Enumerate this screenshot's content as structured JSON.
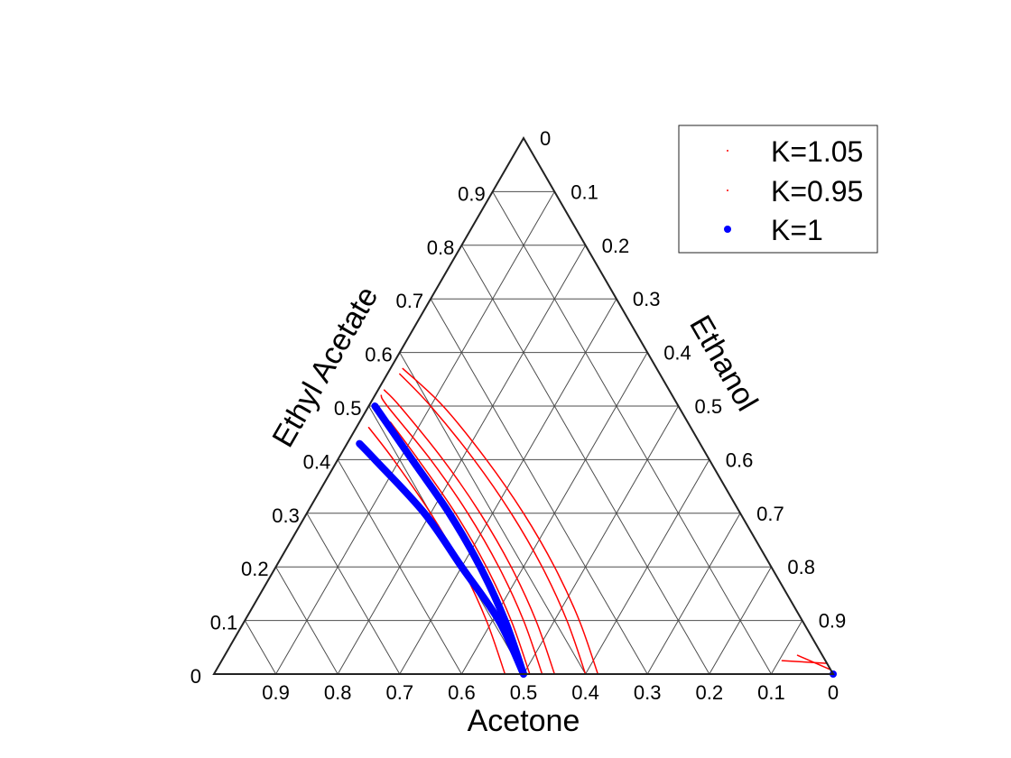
{
  "chart_data": {
    "type": "scatter",
    "projection": "ternary",
    "axes": {
      "bottom": {
        "label": "Acetone",
        "ticks": [
          "0.9",
          "0.8",
          "0.7",
          "0.6",
          "0.5",
          "0.4",
          "0.3",
          "0.2",
          "0.1",
          "0"
        ]
      },
      "left": {
        "label": "Ethyl Acetate",
        "ticks": [
          "0",
          "0.1",
          "0.2",
          "0.3",
          "0.4",
          "0.5",
          "0.6",
          "0.7",
          "0.8",
          "0.9"
        ]
      },
      "right": {
        "label": "Ethanol",
        "ticks": [
          "0",
          "0.1",
          "0.2",
          "0.3",
          "0.4",
          "0.5",
          "0.6",
          "0.7",
          "0.8",
          "0.9"
        ]
      }
    },
    "grid": true,
    "legend": {
      "position": "top-right",
      "entries": [
        "K=1.05",
        "K=0.95",
        "K=1"
      ]
    },
    "series": [
      {
        "name": "K=1.05",
        "color": "#ff0000",
        "marker": "dot",
        "curves": [
          [
            [
              0.0,
              0.38,
              0.62
            ],
            [
              0.1,
              0.36,
              0.54
            ],
            [
              0.2,
              0.35,
              0.45
            ],
            [
              0.3,
              0.35,
              0.35
            ],
            [
              0.4,
              0.36,
              0.24
            ],
            [
              0.5,
              0.38,
              0.12
            ],
            [
              0.57,
              0.41,
              0.02
            ]
          ],
          [
            [
              0.0,
              0.45,
              0.55
            ],
            [
              0.1,
              0.43,
              0.47
            ],
            [
              0.2,
              0.42,
              0.38
            ],
            [
              0.3,
              0.42,
              0.28
            ],
            [
              0.4,
              0.43,
              0.17
            ],
            [
              0.5,
              0.45,
              0.05
            ],
            [
              0.53,
              0.46,
              0.01
            ]
          ],
          [
            [
              0.0,
              0.49,
              0.51
            ],
            [
              0.1,
              0.47,
              0.43
            ],
            [
              0.2,
              0.46,
              0.34
            ],
            [
              0.3,
              0.46,
              0.24
            ],
            [
              0.4,
              0.47,
              0.13
            ],
            [
              0.47,
              0.48,
              0.05
            ]
          ],
          [
            [
              0.008,
              0.0,
              0.992
            ],
            [
              0.035,
              0.04,
              0.925
            ]
          ]
        ]
      },
      {
        "name": "K=0.95",
        "color": "#ff0000",
        "marker": "dot",
        "curves": [
          [
            [
              0.0,
              0.4,
              0.6
            ],
            [
              0.1,
              0.38,
              0.52
            ],
            [
              0.2,
              0.37,
              0.43
            ],
            [
              0.3,
              0.37,
              0.33
            ],
            [
              0.4,
              0.38,
              0.22
            ],
            [
              0.5,
              0.4,
              0.1
            ],
            [
              0.56,
              0.42,
              0.02
            ]
          ],
          [
            [
              0.0,
              0.47,
              0.53
            ],
            [
              0.1,
              0.45,
              0.45
            ],
            [
              0.2,
              0.44,
              0.36
            ],
            [
              0.3,
              0.44,
              0.26
            ],
            [
              0.4,
              0.45,
              0.15
            ],
            [
              0.5,
              0.47,
              0.03
            ],
            [
              0.52,
              0.47,
              0.01
            ]
          ],
          [
            [
              0.0,
              0.53,
              0.47
            ],
            [
              0.1,
              0.51,
              0.39
            ],
            [
              0.2,
              0.5,
              0.3
            ],
            [
              0.3,
              0.5,
              0.2
            ],
            [
              0.4,
              0.51,
              0.09
            ],
            [
              0.46,
              0.52,
              0.02
            ]
          ],
          [
            [
              0.02,
              0.0,
              0.98
            ],
            [
              0.025,
              0.07,
              0.905
            ]
          ]
        ]
      },
      {
        "name": "K=1",
        "color": "#0000ff",
        "marker": "circle-filled",
        "curves": [
          [
            [
              0.0,
              0.5,
              0.5
            ],
            [
              0.1,
              0.48,
              0.42
            ],
            [
              0.2,
              0.47,
              0.33
            ],
            [
              0.3,
              0.47,
              0.23
            ],
            [
              0.4,
              0.48,
              0.12
            ],
            [
              0.5,
              0.49,
              0.01
            ]
          ],
          [
            [
              0.0,
              0.5,
              0.5
            ],
            [
              0.1,
              0.49,
              0.41
            ],
            [
              0.2,
              0.5,
              0.3
            ],
            [
              0.3,
              0.51,
              0.19
            ],
            [
              0.4,
              0.54,
              0.06
            ],
            [
              0.43,
              0.55,
              0.02
            ]
          ],
          [
            [
              0.0,
              0.0,
              1.0
            ]
          ]
        ]
      }
    ]
  }
}
